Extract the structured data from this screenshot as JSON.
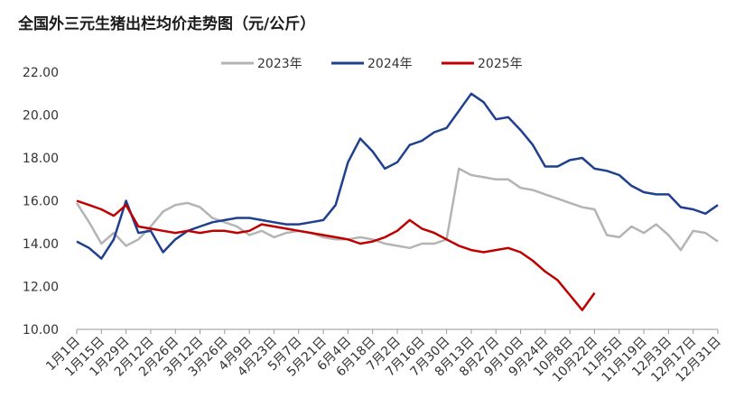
{
  "chart_data": {
    "type": "line",
    "title": "全国外三元生猪出栏均价走势图（元/公斤）",
    "categories": [
      "1月1日",
      null,
      "1月15日",
      null,
      "1月29日",
      null,
      "2月12日",
      null,
      "2月26日",
      null,
      "3月12日",
      null,
      "3月26日",
      null,
      "4月9日",
      null,
      "4月23日",
      null,
      "5月7日",
      null,
      "5月21日",
      null,
      "6月4日",
      null,
      "6月18日",
      null,
      "7月2日",
      null,
      "7月16日",
      null,
      "7月30日",
      null,
      "8月13日",
      null,
      "8月27日",
      null,
      "9月10日",
      null,
      "9月24日",
      null,
      "10月8日",
      null,
      "10月22日",
      null,
      "11月5日",
      null,
      "11月19日",
      null,
      "12月3日",
      null,
      "12月17日",
      null,
      "12月31日"
    ],
    "series": [
      {
        "name": "2023年",
        "color": "#b4b4b4",
        "values": [
          15.9,
          15.0,
          14.0,
          14.5,
          13.9,
          14.2,
          14.8,
          15.5,
          15.8,
          15.9,
          15.7,
          15.2,
          15.0,
          14.8,
          14.4,
          14.6,
          14.3,
          14.5,
          14.6,
          14.5,
          14.3,
          14.2,
          14.2,
          14.3,
          14.2,
          14.0,
          13.9,
          13.8,
          14.0,
          14.0,
          14.2,
          17.5,
          17.2,
          17.1,
          17.0,
          17.0,
          16.6,
          16.5,
          16.3,
          16.1,
          15.9,
          15.7,
          15.6,
          14.4,
          14.3,
          14.8,
          14.5,
          14.9,
          14.4,
          13.7,
          14.6,
          14.5,
          14.1
        ]
      },
      {
        "name": "2024年",
        "color": "#1f3f8f",
        "values": [
          14.1,
          13.8,
          13.3,
          14.2,
          16.0,
          14.5,
          14.6,
          13.6,
          14.2,
          14.6,
          14.8,
          15.0,
          15.1,
          15.2,
          15.2,
          15.1,
          15.0,
          14.9,
          14.9,
          15.0,
          15.1,
          15.8,
          17.8,
          18.9,
          18.3,
          17.5,
          17.8,
          18.6,
          18.8,
          19.2,
          19.4,
          20.2,
          21.0,
          20.6,
          19.8,
          19.9,
          19.3,
          18.6,
          17.6,
          17.6,
          17.9,
          18.0,
          17.5,
          17.4,
          17.2,
          16.7,
          16.4,
          16.3,
          16.3,
          15.7,
          15.6,
          15.4,
          15.8
        ]
      },
      {
        "name": "2025年",
        "color": "#c00000",
        "values": [
          16.0,
          15.8,
          15.6,
          15.3,
          15.8,
          14.8,
          14.7,
          14.6,
          14.5,
          14.6,
          14.5,
          14.6,
          14.6,
          14.5,
          14.6,
          14.9,
          14.8,
          14.7,
          14.6,
          14.5,
          14.4,
          14.3,
          14.2,
          14.0,
          14.1,
          14.3,
          14.6,
          15.1,
          14.7,
          14.5,
          14.2,
          13.9,
          13.7,
          13.6,
          13.7,
          13.8,
          13.6,
          13.2,
          12.7,
          12.3,
          11.6,
          10.9,
          11.7,
          null,
          null,
          null,
          null,
          null,
          null,
          null,
          null,
          null,
          null
        ]
      }
    ],
    "ylim": [
      10,
      22
    ],
    "yticks": [
      {
        "value": 10,
        "label": "10.00"
      },
      {
        "value": 12,
        "label": "12.00"
      },
      {
        "value": 14,
        "label": "14.00"
      },
      {
        "value": 16,
        "label": "16.00"
      },
      {
        "value": 18,
        "label": "18.00"
      },
      {
        "value": 20,
        "label": "20.00"
      },
      {
        "value": 22,
        "label": "22.00"
      }
    ],
    "grid": false,
    "legend": "top"
  }
}
